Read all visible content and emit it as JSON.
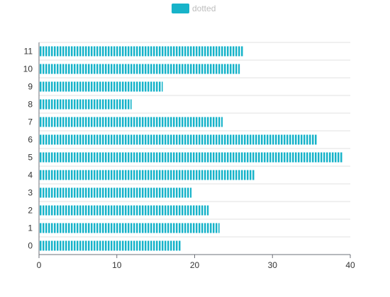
{
  "chart_data": {
    "type": "bar",
    "orientation": "horizontal",
    "categories": [
      "0",
      "1",
      "2",
      "3",
      "4",
      "5",
      "6",
      "7",
      "8",
      "9",
      "10",
      "11"
    ],
    "series": [
      {
        "name": "dotted",
        "values": [
          18.2,
          23.2,
          21.8,
          19.6,
          27.7,
          39.0,
          35.8,
          23.6,
          11.9,
          15.9,
          25.8,
          26.3
        ],
        "color": "#17b3c9",
        "pattern": "vertical-stripes"
      }
    ],
    "xlim": [
      0,
      40
    ],
    "x_ticks": [
      0,
      10,
      20,
      30,
      40
    ],
    "legend": {
      "position": "top-center"
    },
    "grid": {
      "horizontal": true,
      "vertical": false
    }
  }
}
